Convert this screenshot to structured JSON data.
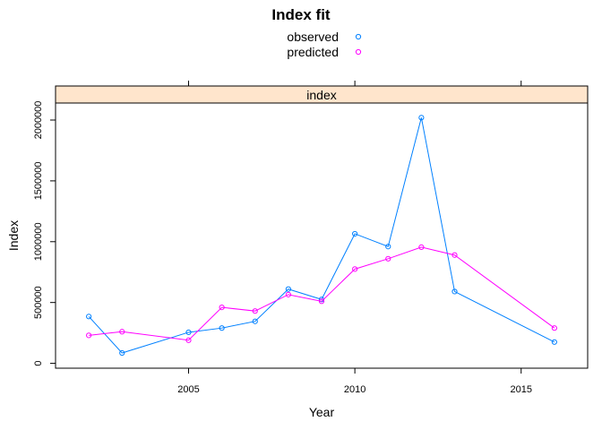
{
  "chart_data": {
    "type": "line",
    "title": "Index fit",
    "panel_strip": "index",
    "xlabel": "Year",
    "ylabel": "Index",
    "xlim": [
      2001,
      2017
    ],
    "ylim": [
      -40000,
      2140000
    ],
    "x_ticks": [
      2005,
      2010,
      2015
    ],
    "y_ticks": [
      0,
      500000,
      1000000,
      1500000,
      2000000
    ],
    "legend_placement": "top-center",
    "strip_color": "#ffe5cc",
    "series": [
      {
        "name": "observed",
        "color": "#0080ff",
        "x": [
          2002,
          2003,
          2005,
          2006,
          2007,
          2008,
          2009,
          2010,
          2011,
          2012,
          2013,
          2016
        ],
        "y": [
          385000,
          85000,
          255000,
          290000,
          345000,
          610000,
          525000,
          1065000,
          960000,
          2020000,
          590000,
          175000
        ]
      },
      {
        "name": "predicted",
        "color": "#ff00ff",
        "x": [
          2002,
          2003,
          2005,
          2006,
          2007,
          2008,
          2009,
          2010,
          2011,
          2012,
          2013,
          2016
        ],
        "y": [
          230000,
          260000,
          190000,
          460000,
          430000,
          565000,
          510000,
          775000,
          860000,
          955000,
          890000,
          290000
        ]
      }
    ]
  }
}
